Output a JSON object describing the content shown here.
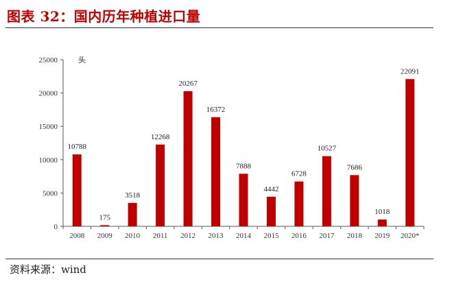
{
  "header": {
    "title": "图表 32：国内历年种植进口量"
  },
  "footer": {
    "source": "资料来源：wind"
  },
  "colors": {
    "bar": "#c00000",
    "title": "#c00000"
  },
  "chart_data": {
    "type": "bar",
    "title": "",
    "xlabel": "",
    "ylabel": "",
    "unit_label": "头",
    "categories": [
      "2008",
      "2009",
      "2010",
      "2011",
      "2012",
      "2013",
      "2014",
      "2015",
      "2016",
      "2017",
      "2018",
      "2019",
      "2020*"
    ],
    "values": [
      10788,
      175,
      3518,
      12268,
      20267,
      16372,
      7888,
      4442,
      6728,
      10527,
      7686,
      1018,
      22091
    ],
    "ylim": [
      0,
      25000
    ],
    "yticks": [
      0,
      5000,
      10000,
      15000,
      20000,
      25000
    ],
    "grid": false,
    "legend": "none"
  }
}
